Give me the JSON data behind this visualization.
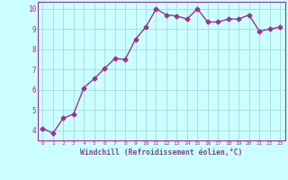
{
  "x": [
    0,
    1,
    2,
    3,
    4,
    5,
    6,
    7,
    8,
    9,
    10,
    11,
    12,
    13,
    14,
    15,
    16,
    17,
    18,
    19,
    20,
    21,
    22,
    23
  ],
  "y": [
    4.1,
    3.85,
    4.6,
    4.8,
    6.1,
    6.55,
    7.05,
    7.55,
    7.5,
    8.5,
    9.1,
    10.0,
    9.7,
    9.65,
    9.5,
    10.0,
    9.35,
    9.35,
    9.5,
    9.5,
    9.7,
    8.9,
    9.0,
    9.1
  ],
  "line_color": "#993399",
  "marker": "D",
  "markersize": 2.5,
  "linewidth": 1.0,
  "bg_color": "#ccffff",
  "grid_color": "#aadddd",
  "xlabel": "Windchill (Refroidissement éolien,°C)",
  "xlabel_color": "#993399",
  "tick_color": "#993399",
  "ylabel_ticks": [
    4,
    5,
    6,
    7,
    8,
    9,
    10
  ],
  "xlim": [
    -0.5,
    23.5
  ],
  "ylim": [
    3.5,
    10.35
  ],
  "spine_color": "#993399"
}
